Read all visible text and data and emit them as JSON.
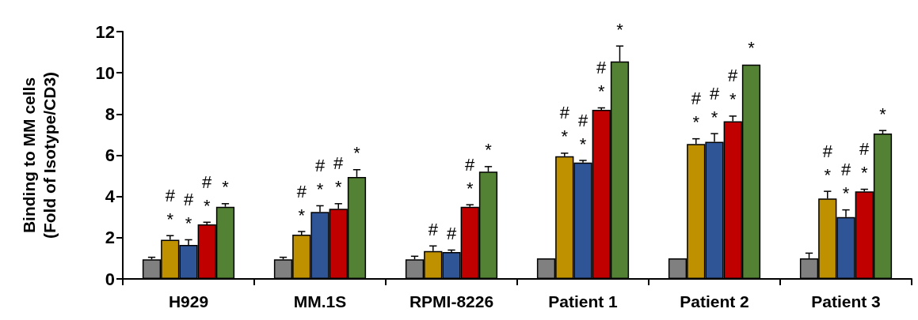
{
  "chart_data": {
    "type": "bar",
    "ylabel": "Binding to MM cells\n(Fold of Isotype/CD3)",
    "categories": [
      "H929",
      "MM.1S",
      "RPMI-8226",
      "Patient 1",
      "Patient 2",
      "Patient 3"
    ],
    "ylim": [
      0,
      12
    ],
    "yticks": [
      0,
      2,
      4,
      6,
      8,
      10,
      12
    ],
    "grid": false,
    "series": [
      {
        "color": "#808080",
        "values": [
          0.95,
          0.95,
          0.95,
          1.0,
          1.0,
          1.0
        ],
        "errors": [
          0.1,
          0.1,
          0.15,
          null,
          null,
          0.25
        ],
        "value_labels": [
          null,
          null,
          null,
          null,
          null,
          null
        ]
      },
      {
        "color": "#bf9000",
        "values": [
          1.9,
          2.15,
          1.35,
          5.95,
          6.55,
          3.9
        ],
        "errors": [
          0.2,
          0.15,
          0.25,
          0.15,
          0.25,
          0.35
        ],
        "value_labels": [
          "#\n*",
          "#\n*",
          "#",
          "#\n*",
          "#\n*",
          "#\n*"
        ]
      },
      {
        "color": "#2f5597",
        "values": [
          1.65,
          3.25,
          1.3,
          5.65,
          6.65,
          3.0
        ],
        "errors": [
          0.25,
          0.3,
          0.1,
          0.1,
          0.4,
          0.35
        ],
        "value_labels": [
          "#\n*",
          "#\n*",
          "#",
          "#\n*",
          "#\n*",
          "#\n*"
        ]
      },
      {
        "color": "#c00000",
        "values": [
          2.65,
          3.4,
          3.5,
          8.2,
          7.65,
          4.25
        ],
        "errors": [
          0.1,
          0.25,
          0.1,
          0.1,
          0.25,
          0.1
        ],
        "value_labels": [
          "#\n*",
          "#\n*",
          "#\n*",
          "#\n*",
          "#\n*",
          "#\n*"
        ]
      },
      {
        "color": "#548235",
        "values": [
          3.5,
          4.95,
          5.2,
          10.55,
          10.4,
          7.05
        ],
        "errors": [
          0.15,
          0.35,
          0.25,
          0.75,
          null,
          0.15
        ],
        "value_labels": [
          "*",
          "*",
          "*",
          "*",
          "*",
          "*"
        ]
      }
    ]
  }
}
